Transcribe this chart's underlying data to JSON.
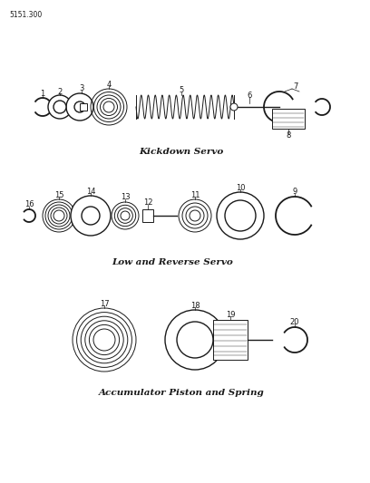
{
  "title_code": "5151.300",
  "bg_color": "#ffffff",
  "line_color": "#1a1a1a",
  "section1_label": "Kickdown Servo",
  "section2_label": "Low and Reverse Servo",
  "section3_label": "Accumulator Piston and Spring",
  "part_label_fontsize": 6.0,
  "title_fontsize": 5.5,
  "section_label_fontsize": 7.5
}
